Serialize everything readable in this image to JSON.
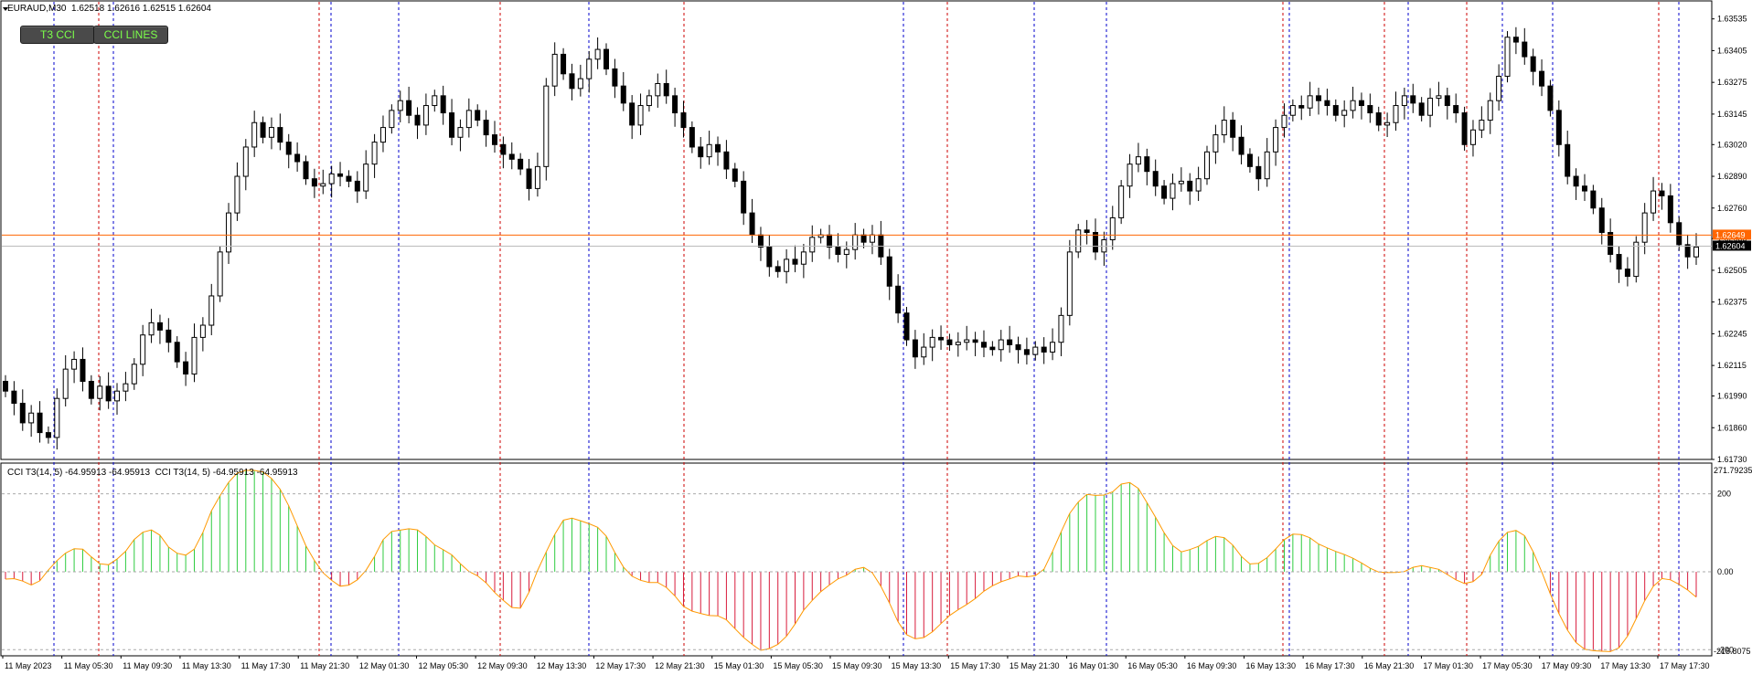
{
  "header": {
    "symbol_timeframe": "EURAUD,M30",
    "ohlc": "1.62518 1.62616 1.62515 1.62604"
  },
  "buttons": {
    "t3cci": "T3 CCI",
    "ccilines": "CCI LINES"
  },
  "subwindow": {
    "header": "CCI T3(14, 5) -64.95913 -64.95913  CCI T3(14, 5) -64.95913 -64.95913"
  },
  "price_scale": {
    "labels": [
      "1.63535",
      "1.63405",
      "1.63275",
      "1.63145",
      "1.63020",
      "1.62890",
      "1.62760",
      "1.62635",
      "1.62505",
      "1.62375",
      "1.62245",
      "1.62115",
      "1.61990",
      "1.61860",
      "1.61730"
    ],
    "marker_high": "1.62649",
    "marker_current": "1.62604"
  },
  "cci_scale": {
    "top": "271.79235",
    "upper_level": "200",
    "zero": "0.00",
    "lower_level": "-200",
    "bottom": "-215.8075"
  },
  "time_axis": {
    "labels": [
      "11 May 2023",
      "11 May 05:30",
      "11 May 09:30",
      "11 May 13:30",
      "11 May 17:30",
      "11 May 21:30",
      "12 May 01:30",
      "12 May 05:30",
      "12 May 09:30",
      "12 May 13:30",
      "12 May 17:30",
      "12 May 21:30",
      "15 May 01:30",
      "15 May 05:30",
      "15 May 09:30",
      "15 May 13:30",
      "15 May 17:30",
      "15 May 21:30",
      "16 May 01:30",
      "16 May 05:30",
      "16 May 09:30",
      "16 May 13:30",
      "16 May 17:30",
      "16 May 21:30",
      "17 May 01:30",
      "17 May 05:30",
      "17 May 09:30",
      "17 May 13:30",
      "17 May 17:30"
    ]
  },
  "colors": {
    "bull_histogram": "#2ecc40",
    "bear_histogram": "#d81b3c",
    "cci_line": "#ff9900",
    "current_price_line": "#ff6600",
    "vline_blue": "#0000cc",
    "vline_red": "#cc0000"
  },
  "chart_data": [
    {
      "type": "candlestick",
      "title": "EURAUD,M30",
      "ylim": [
        1.6173,
        1.6356
      ],
      "current_price": 1.62604,
      "bid_line": 1.62649,
      "close_series": [
        1.6201,
        1.6196,
        1.6188,
        1.6192,
        1.6184,
        1.6182,
        1.6198,
        1.621,
        1.6214,
        1.6205,
        1.6198,
        1.6203,
        1.6197,
        1.6201,
        1.6204,
        1.6212,
        1.6224,
        1.6229,
        1.6226,
        1.6221,
        1.6213,
        1.6208,
        1.6223,
        1.6228,
        1.624,
        1.6258,
        1.6274,
        1.6289,
        1.6301,
        1.6311,
        1.6305,
        1.6309,
        1.6303,
        1.6298,
        1.6295,
        1.6288,
        1.6285,
        1.6286,
        1.629,
        1.6289,
        1.6287,
        1.6283,
        1.6294,
        1.6303,
        1.6309,
        1.6316,
        1.632,
        1.6314,
        1.631,
        1.6318,
        1.6322,
        1.6315,
        1.6305,
        1.6309,
        1.6316,
        1.6312,
        1.6306,
        1.6302,
        1.6298,
        1.6296,
        1.6292,
        1.6284,
        1.6293,
        1.6326,
        1.6339,
        1.6331,
        1.6325,
        1.6329,
        1.6337,
        1.6341,
        1.6333,
        1.6326,
        1.6319,
        1.631,
        1.6318,
        1.6322,
        1.6327,
        1.6322,
        1.6315,
        1.6309,
        1.6301,
        1.6297,
        1.6302,
        1.6299,
        1.6292,
        1.6287,
        1.6274,
        1.6265,
        1.626,
        1.6252,
        1.625,
        1.6255,
        1.6253,
        1.6258,
        1.6264,
        1.6265,
        1.626,
        1.6257,
        1.6259,
        1.6265,
        1.6262,
        1.6265,
        1.6256,
        1.6244,
        1.6233,
        1.6222,
        1.6215,
        1.6219,
        1.6223,
        1.6222,
        1.622,
        1.6221,
        1.6222,
        1.6221,
        1.6219,
        1.6218,
        1.6222,
        1.622,
        1.6218,
        1.6216,
        1.6219,
        1.6217,
        1.6221,
        1.6232,
        1.6258,
        1.6267,
        1.6266,
        1.6258,
        1.6263,
        1.6272,
        1.6285,
        1.6294,
        1.6297,
        1.6291,
        1.6285,
        1.628,
        1.6286,
        1.6287,
        1.6283,
        1.6288,
        1.6299,
        1.6306,
        1.6312,
        1.6305,
        1.6298,
        1.6293,
        1.6288,
        1.6299,
        1.6309,
        1.6314,
        1.6318,
        1.6317,
        1.6322,
        1.632,
        1.6318,
        1.6314,
        1.6316,
        1.632,
        1.6318,
        1.6315,
        1.631,
        1.6311,
        1.6318,
        1.6322,
        1.6319,
        1.6314,
        1.6321,
        1.6322,
        1.6318,
        1.6315,
        1.6302,
        1.6308,
        1.6312,
        1.632,
        1.633,
        1.6346,
        1.6344,
        1.6338,
        1.6332,
        1.6326,
        1.6316,
        1.6302,
        1.6289,
        1.6285,
        1.6283,
        1.6276,
        1.6266,
        1.6257,
        1.6251,
        1.6248,
        1.6262,
        1.6274,
        1.6283,
        1.6281,
        1.627,
        1.6261,
        1.6256,
        1.626
      ]
    },
    {
      "type": "bar",
      "title": "CCI T3(14, 5)",
      "ylim": [
        -215.8075,
        271.79235
      ],
      "levels": [
        200,
        0,
        -200
      ],
      "current_value": -64.95913
    }
  ]
}
